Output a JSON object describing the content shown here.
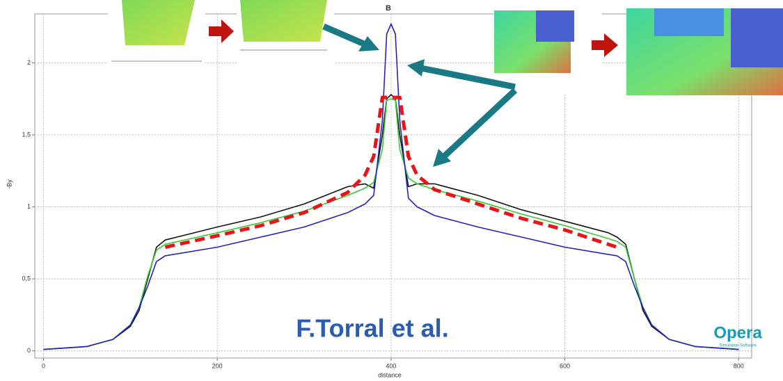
{
  "chart_data": {
    "type": "line",
    "title": "B",
    "x_label": "distance",
    "y_label": "-By",
    "x": [
      0,
      50,
      80,
      100,
      110,
      120,
      130,
      140,
      200,
      250,
      300,
      350,
      370,
      380,
      390,
      395,
      400,
      405,
      410,
      420,
      430,
      450,
      500,
      550,
      600,
      650,
      660,
      670,
      680,
      690,
      700,
      720,
      750,
      800
    ],
    "series": [
      {
        "color": "#111111",
        "style": "solid",
        "values": [
          0.01,
          0.03,
          0.08,
          0.17,
          0.28,
          0.5,
          0.72,
          0.77,
          0.86,
          0.93,
          1.02,
          1.14,
          1.16,
          1.13,
          1.5,
          1.75,
          1.78,
          1.75,
          1.5,
          1.14,
          1.16,
          1.16,
          1.08,
          0.98,
          0.9,
          0.82,
          0.79,
          0.74,
          0.5,
          0.28,
          0.17,
          0.08,
          0.03,
          0.01
        ]
      },
      {
        "color": "#33cc33",
        "style": "solid",
        "values": [
          0.01,
          0.03,
          0.08,
          0.18,
          0.3,
          0.52,
          0.7,
          0.74,
          0.82,
          0.89,
          0.97,
          1.08,
          1.13,
          1.17,
          1.4,
          1.74,
          1.75,
          1.74,
          1.4,
          1.2,
          1.16,
          1.12,
          1.04,
          0.95,
          0.87,
          0.78,
          0.76,
          0.72,
          0.5,
          0.3,
          0.18,
          0.08,
          0.03,
          0.01
        ]
      },
      {
        "color": "#2222bb",
        "style": "solid",
        "values": [
          0.01,
          0.03,
          0.08,
          0.18,
          0.3,
          0.45,
          0.62,
          0.66,
          0.72,
          0.79,
          0.86,
          0.96,
          1.02,
          1.08,
          1.6,
          2.2,
          2.27,
          2.2,
          1.6,
          1.06,
          1.0,
          0.94,
          0.86,
          0.79,
          0.72,
          0.67,
          0.66,
          0.62,
          0.45,
          0.3,
          0.18,
          0.08,
          0.03,
          0.01
        ]
      },
      {
        "color": "#e8141a",
        "style": "dashed",
        "values": [
          null,
          null,
          null,
          null,
          null,
          null,
          null,
          0.72,
          0.8,
          0.87,
          0.96,
          1.1,
          1.22,
          1.35,
          1.76,
          1.76,
          1.76,
          1.76,
          1.76,
          1.35,
          1.22,
          1.12,
          1.02,
          0.92,
          0.84,
          0.74,
          0.72,
          null,
          null,
          null,
          null,
          null,
          null,
          null
        ]
      }
    ],
    "xlim": [
      -10,
      815
    ],
    "ylim": [
      -0.05,
      2.34
    ],
    "xticks": [
      0,
      200,
      400,
      600,
      800
    ],
    "yticks": [
      0,
      {
        "value": 0.5,
        "label": "0,5"
      },
      1,
      {
        "value": 1.5,
        "label": "1,5"
      },
      2
    ],
    "grid": true,
    "annotations": [
      "F.Torral et al.",
      "Opera",
      "Simulation Software"
    ]
  }
}
